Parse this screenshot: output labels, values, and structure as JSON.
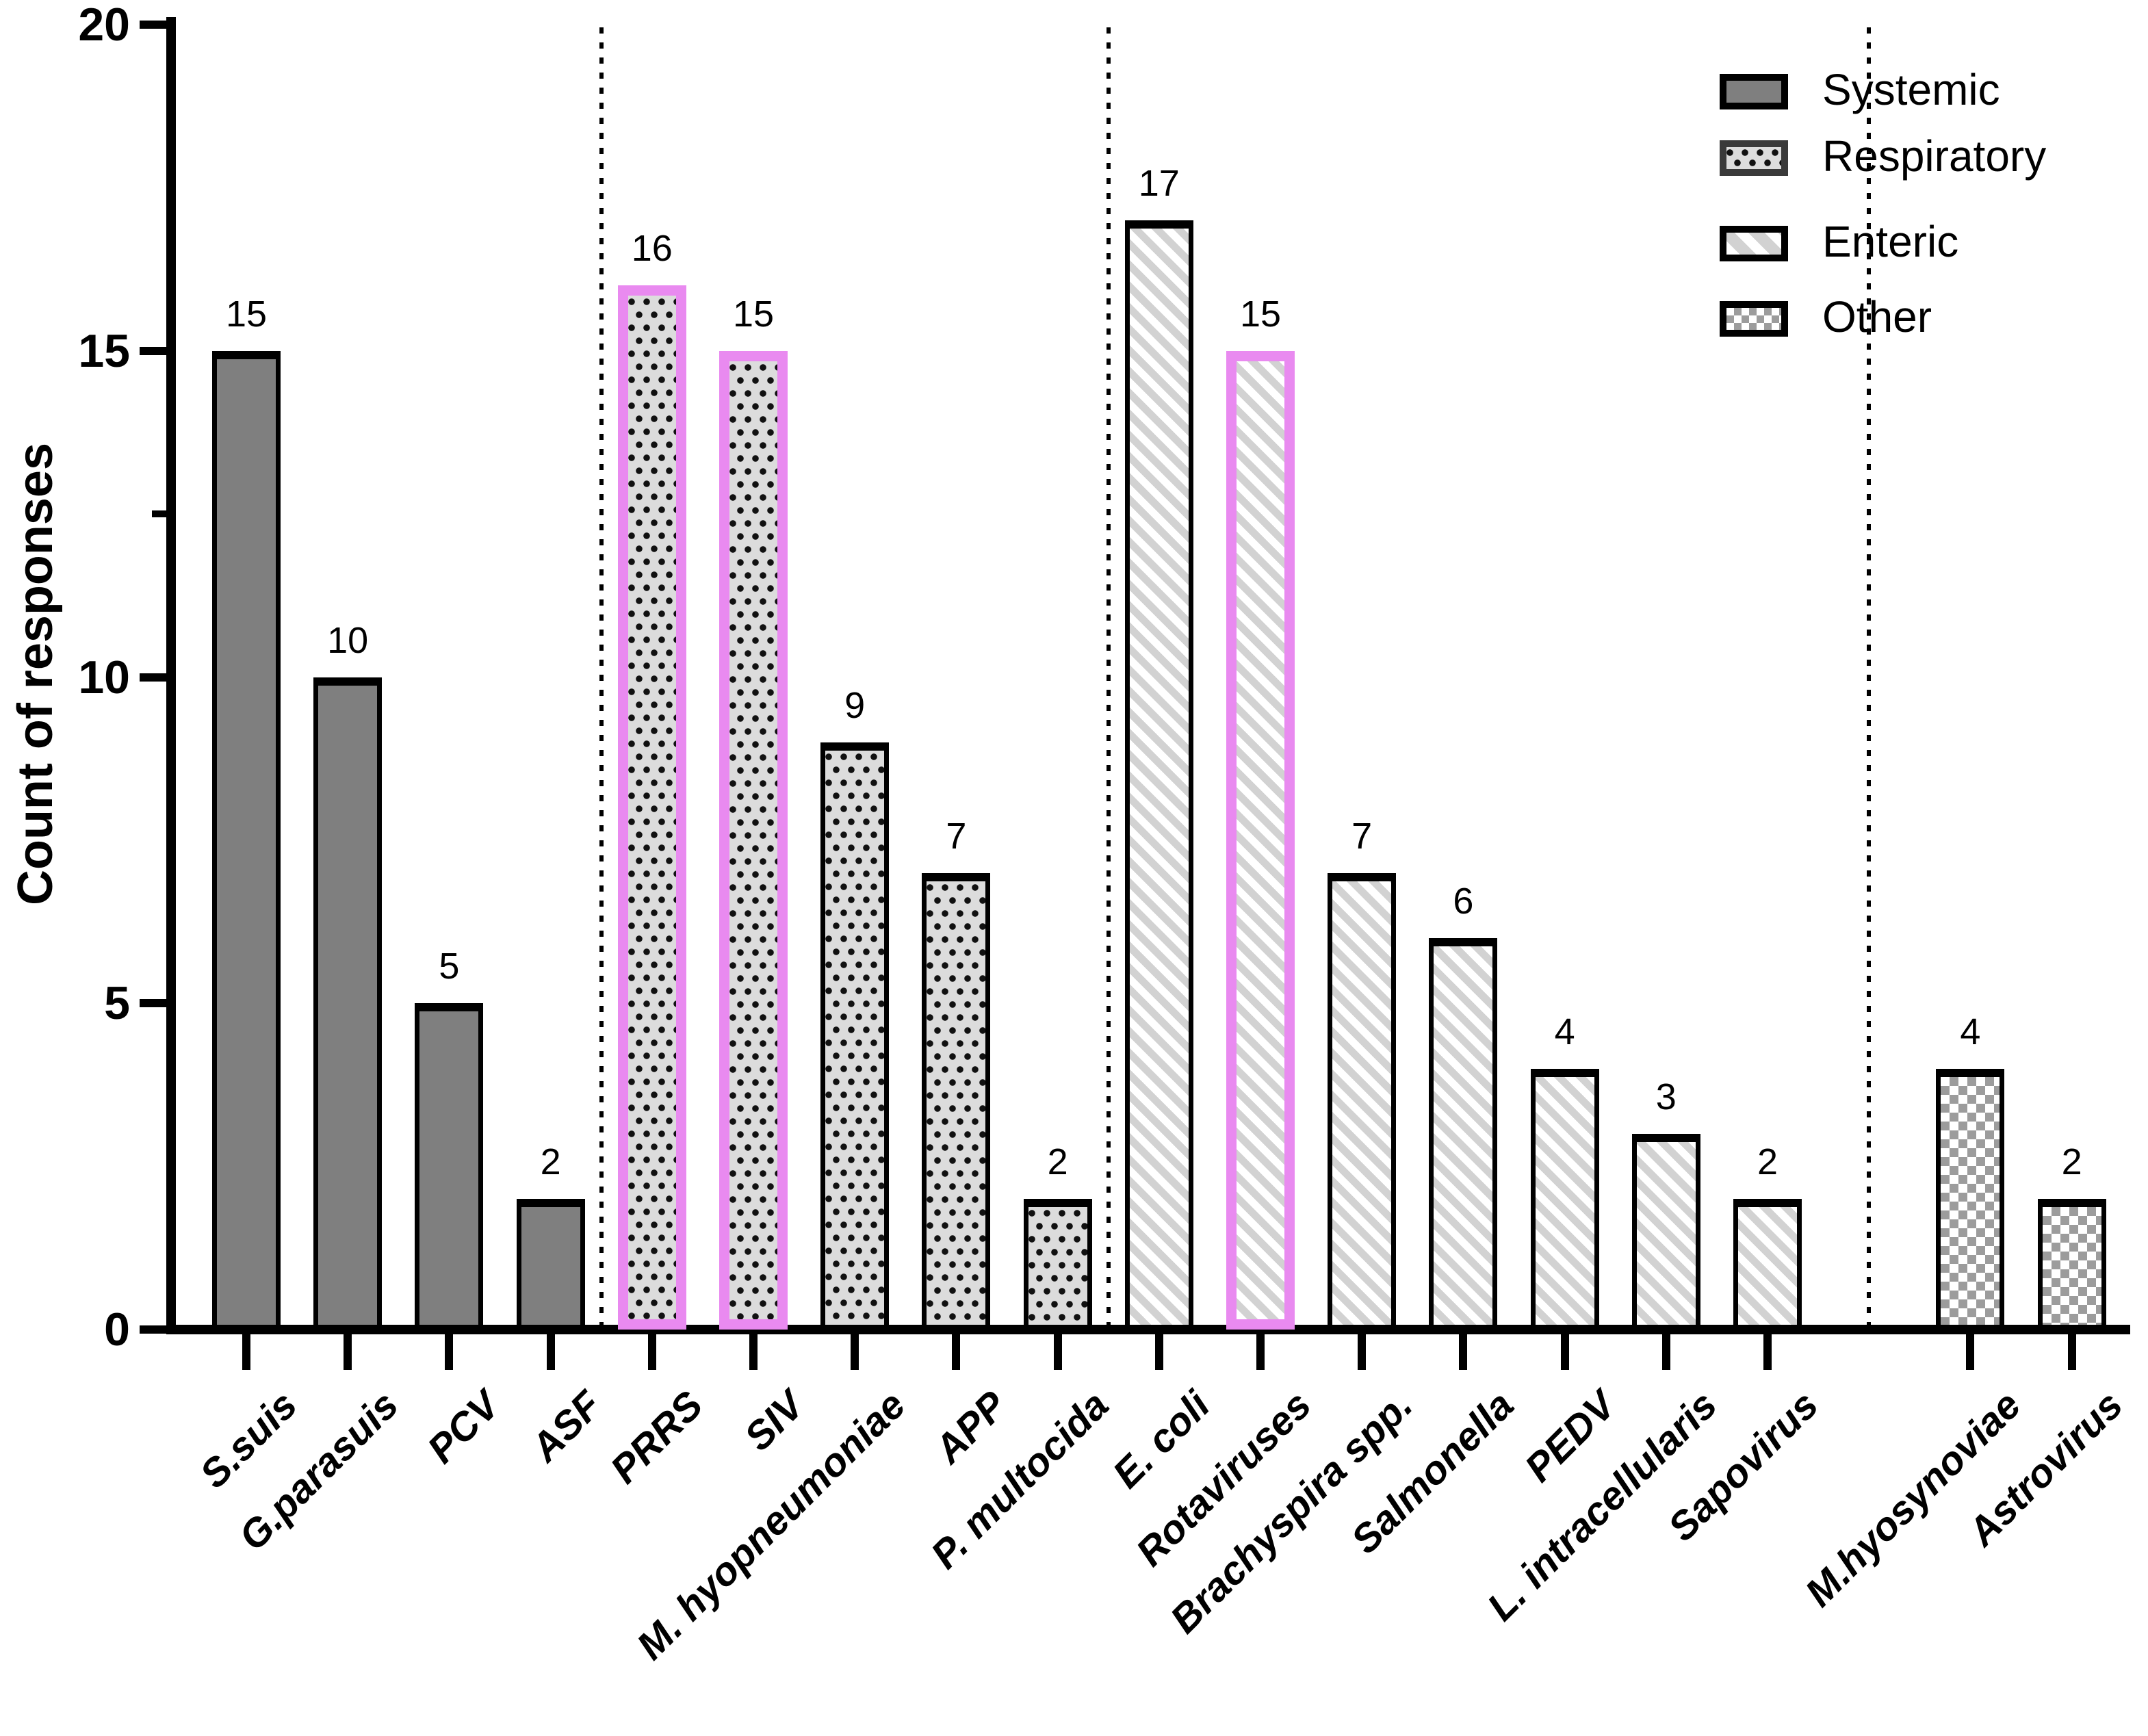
{
  "chart_data": {
    "type": "bar",
    "title": "",
    "ylabel": "Count of responses",
    "xlabel": "",
    "ylim": [
      0,
      20
    ],
    "yticks": [
      0,
      5,
      10,
      15,
      20
    ],
    "minor_ytick": 12.5,
    "grid": false,
    "legend_position": "top-right",
    "legend": [
      "Systemic",
      "Respiratory",
      "Enteric",
      "Other"
    ],
    "groups": [
      {
        "name": "Systemic",
        "pattern": "solid"
      },
      {
        "name": "Respiratory",
        "pattern": "dots"
      },
      {
        "name": "Enteric",
        "pattern": "stripes"
      },
      {
        "name": "Other",
        "pattern": "checker"
      }
    ],
    "gap_before_group": "Other",
    "categories": [
      "S.suis",
      "G.parasuis",
      "PCV",
      "ASF",
      "PRRS",
      "SIV",
      "M. hyopneumoniae",
      "APP",
      "P. multocida",
      "E. coli",
      "Rotaviruses",
      "Brachyspira spp.",
      "Salmonella",
      "PEDV",
      "L. intracellularis",
      "Sapovirus",
      "M.hyosynoviae",
      "Astrovirus"
    ],
    "values": [
      15,
      10,
      5,
      2,
      16,
      15,
      9,
      7,
      2,
      17,
      15,
      7,
      6,
      4,
      3,
      2,
      4,
      2
    ],
    "bars": [
      {
        "label": "S.suis",
        "value": 15,
        "group": "Systemic",
        "highlighted": false
      },
      {
        "label": "G.parasuis",
        "value": 10,
        "group": "Systemic",
        "highlighted": false
      },
      {
        "label": "PCV",
        "value": 5,
        "group": "Systemic",
        "highlighted": false
      },
      {
        "label": "ASF",
        "value": 2,
        "group": "Systemic",
        "highlighted": false
      },
      {
        "label": "PRRS",
        "value": 16,
        "group": "Respiratory",
        "highlighted": true
      },
      {
        "label": "SIV",
        "value": 15,
        "group": "Respiratory",
        "highlighted": true
      },
      {
        "label": "M. hyopneumoniae",
        "value": 9,
        "group": "Respiratory",
        "highlighted": false
      },
      {
        "label": "APP",
        "value": 7,
        "group": "Respiratory",
        "highlighted": false
      },
      {
        "label": "P. multocida",
        "value": 2,
        "group": "Respiratory",
        "highlighted": false
      },
      {
        "label": "E. coli",
        "value": 17,
        "group": "Enteric",
        "highlighted": false
      },
      {
        "label": "Rotaviruses",
        "value": 15,
        "group": "Enteric",
        "highlighted": true
      },
      {
        "label": "Brachyspira spp.",
        "value": 7,
        "group": "Enteric",
        "highlighted": false
      },
      {
        "label": "Salmonella",
        "value": 6,
        "group": "Enteric",
        "highlighted": false
      },
      {
        "label": "PEDV",
        "value": 4,
        "group": "Enteric",
        "highlighted": false
      },
      {
        "label": "L. intracellularis",
        "value": 3,
        "group": "Enteric",
        "highlighted": false
      },
      {
        "label": "Sapovirus",
        "value": 2,
        "group": "Enteric",
        "highlighted": false
      },
      {
        "label": "M.hyosynoviae",
        "value": 4,
        "group": "Other",
        "highlighted": false
      },
      {
        "label": "Astrovirus",
        "value": 2,
        "group": "Other",
        "highlighted": false
      }
    ],
    "colors": {
      "bar_solid": "#7f7f7f",
      "pattern_bg": "#dcdcdc",
      "dot": "#111111",
      "stripe": "#d2d2d2",
      "checker": "#9c9c9c",
      "highlight": "#E98AF0",
      "axis": "#000000"
    }
  }
}
